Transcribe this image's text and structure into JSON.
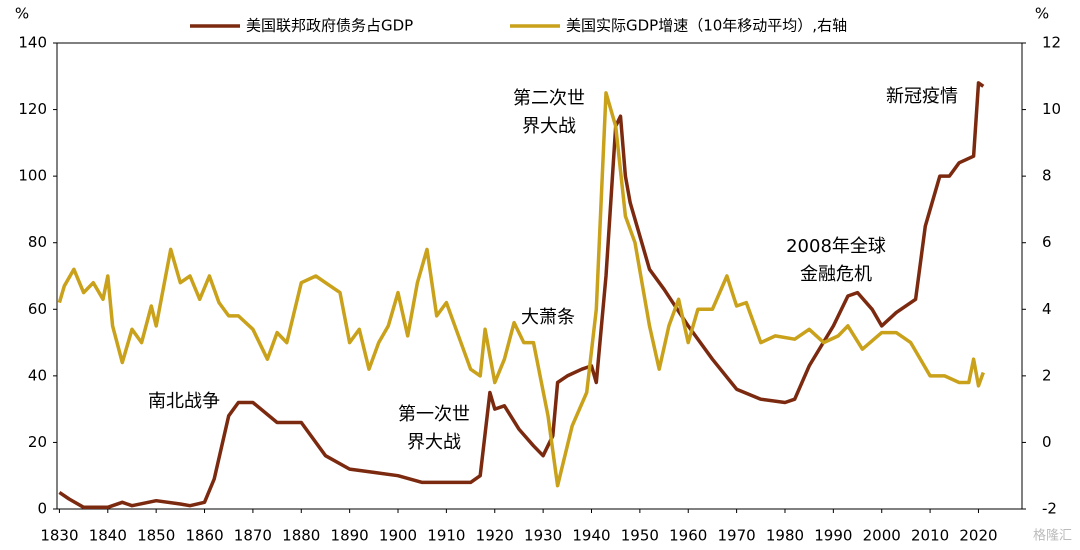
{
  "chart_data": {
    "type": "line",
    "y_unit": "%",
    "y2_unit": "%",
    "xlim": [
      1829.5,
      2029
    ],
    "xticks": [
      1830,
      1840,
      1850,
      1860,
      1870,
      1880,
      1890,
      1900,
      1910,
      1920,
      1930,
      1940,
      1950,
      1960,
      1970,
      1980,
      1990,
      2000,
      2010,
      2020
    ],
    "ylim": [
      0,
      140
    ],
    "yticks": [
      0,
      20,
      40,
      60,
      80,
      100,
      120,
      140
    ],
    "y2lim": [
      -2,
      12
    ],
    "y2ticks": [
      -2,
      0,
      2,
      4,
      6,
      8,
      10,
      12
    ],
    "series": [
      {
        "name": "美国联邦政府债务占GDP",
        "color": "#7b2a10",
        "x": [
          1830,
          1832,
          1835,
          1840,
          1843,
          1845,
          1850,
          1855,
          1857,
          1860,
          1862,
          1865,
          1867,
          1870,
          1875,
          1880,
          1885,
          1890,
          1895,
          1900,
          1905,
          1910,
          1915,
          1917,
          1919,
          1920,
          1922,
          1925,
          1928,
          1930,
          1932,
          1933,
          1935,
          1938,
          1940,
          1941,
          1943,
          1945,
          1946,
          1947,
          1948,
          1950,
          1952,
          1955,
          1960,
          1965,
          1970,
          1975,
          1980,
          1982,
          1985,
          1990,
          1993,
          1995,
          1998,
          2000,
          2003,
          2007,
          2009,
          2012,
          2014,
          2016,
          2019,
          2020,
          2021
        ],
        "values": [
          5,
          3,
          0.5,
          0.5,
          2,
          1,
          2.5,
          1.5,
          1,
          2,
          9,
          28,
          32,
          32,
          26,
          26,
          16,
          12,
          11,
          10,
          8,
          8,
          8,
          10,
          35,
          30,
          31,
          24,
          19,
          16,
          22,
          38,
          40,
          42,
          43,
          38,
          70,
          115,
          118,
          100,
          92,
          82,
          72,
          66,
          55,
          45,
          36,
          33,
          32,
          33,
          43,
          55,
          64,
          65,
          60,
          55,
          59,
          63,
          85,
          100,
          100,
          104,
          106,
          128,
          127
        ]
      },
      {
        "name": "美国实际GDP增速（10年移动平均）,右轴",
        "color": "#c9a11a",
        "axis": "y2",
        "x": [
          1830,
          1831,
          1833,
          1835,
          1837,
          1839,
          1840,
          1841,
          1843,
          1845,
          1847,
          1849,
          1850,
          1853,
          1855,
          1857,
          1859,
          1861,
          1863,
          1865,
          1867,
          1870,
          1873,
          1875,
          1877,
          1880,
          1883,
          1885,
          1888,
          1890,
          1892,
          1894,
          1896,
          1898,
          1900,
          1902,
          1904,
          1906,
          1908,
          1910,
          1912,
          1915,
          1917,
          1918,
          1920,
          1922,
          1924,
          1926,
          1928,
          1931,
          1933,
          1936,
          1939,
          1941,
          1943,
          1945,
          1947,
          1949,
          1952,
          1954,
          1956,
          1958,
          1960,
          1962,
          1965,
          1968,
          1970,
          1972,
          1975,
          1978,
          1982,
          1985,
          1988,
          1991,
          1993,
          1996,
          2000,
          2003,
          2006,
          2010,
          2013,
          2016,
          2018,
          2019,
          2020,
          2021
        ],
        "values": [
          4.2,
          4.7,
          5.2,
          4.5,
          4.8,
          4.3,
          5.0,
          3.5,
          2.4,
          3.4,
          3.0,
          4.1,
          3.5,
          5.8,
          4.8,
          5.0,
          4.3,
          5.0,
          4.2,
          3.8,
          3.8,
          3.4,
          2.5,
          3.3,
          3.0,
          4.8,
          5.0,
          4.8,
          4.5,
          3.0,
          3.4,
          2.2,
          3.0,
          3.5,
          4.5,
          3.2,
          4.8,
          5.8,
          3.8,
          4.2,
          3.4,
          2.2,
          2.0,
          3.4,
          1.8,
          2.5,
          3.6,
          3.0,
          3.0,
          0.8,
          -1.3,
          0.5,
          1.5,
          4.0,
          10.5,
          9.5,
          6.8,
          6.0,
          3.5,
          2.2,
          3.5,
          4.3,
          3.0,
          4.0,
          4.0,
          5.0,
          4.1,
          4.2,
          3.0,
          3.2,
          3.1,
          3.4,
          3.0,
          3.2,
          3.5,
          2.8,
          3.3,
          3.3,
          3.0,
          2.0,
          2.0,
          1.8,
          1.8,
          2.5,
          1.7,
          2.1
        ]
      }
    ],
    "annotations": [
      {
        "lines": [
          "南北战争"
        ]
      },
      {
        "lines": [
          "第一次世",
          "界大战"
        ]
      },
      {
        "lines": [
          "大萧条"
        ]
      },
      {
        "lines": [
          "第二次世",
          "界大战"
        ]
      },
      {
        "lines": [
          "2008年全球",
          "金融危机"
        ]
      },
      {
        "lines": [
          "新冠疫情"
        ]
      }
    ],
    "watermark": "格隆汇"
  }
}
